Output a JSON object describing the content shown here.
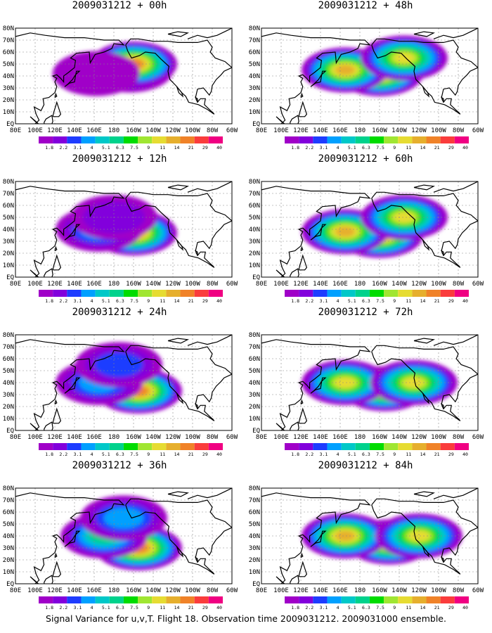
{
  "chart_data": [
    {
      "type": "heatmap",
      "title": "2009031212 + 00h",
      "x_ticks": [
        "80E",
        "100E",
        "120E",
        "140E",
        "160E",
        "180",
        "160W",
        "140W",
        "120W",
        "100W",
        "80W",
        "60W"
      ],
      "y_ticks": [
        "EQ",
        "10N",
        "20N",
        "30N",
        "40N",
        "50N",
        "60N",
        "70N",
        "80N"
      ],
      "legend_values": [
        "1.8",
        "2.2",
        "3.1",
        "4",
        "5.1",
        "6.3",
        "7.5",
        "9",
        "11",
        "14",
        "21",
        "29",
        "40"
      ],
      "blobs": [
        {
          "lon": 196,
          "lat": 45,
          "level": 5
        },
        {
          "lon": 200,
          "lat": 50,
          "level": 10
        },
        {
          "lon": 162,
          "lat": 42,
          "level": 0
        }
      ]
    },
    {
      "type": "heatmap",
      "title": "2009031212 + 12h",
      "x_ticks": [
        "80E",
        "100E",
        "120E",
        "140E",
        "160E",
        "180",
        "160W",
        "140W",
        "120W",
        "100W",
        "80W",
        "60W"
      ],
      "y_ticks": [
        "EQ",
        "10N",
        "20N",
        "30N",
        "40N",
        "50N",
        "60N",
        "70N",
        "80N"
      ],
      "legend_values": [
        "1.8",
        "2.2",
        "3.1",
        "4",
        "5.1",
        "6.3",
        "7.5",
        "9",
        "11",
        "14",
        "21",
        "29",
        "40"
      ],
      "blobs": [
        {
          "lon": 200,
          "lat": 37,
          "level": 10
        },
        {
          "lon": 165,
          "lat": 40,
          "level": 3
        },
        {
          "lon": 180,
          "lat": 50,
          "level": 1
        }
      ]
    },
    {
      "type": "heatmap",
      "title": "2009031212 + 24h",
      "x_ticks": [
        "80E",
        "100E",
        "120E",
        "140E",
        "160E",
        "180",
        "160W",
        "140W",
        "120W",
        "100W",
        "80W",
        "60W"
      ],
      "y_ticks": [
        "EQ",
        "10N",
        "20N",
        "30N",
        "40N",
        "50N",
        "60N",
        "70N",
        "80N"
      ],
      "legend_values": [
        "1.8",
        "2.2",
        "3.1",
        "4",
        "5.1",
        "6.3",
        "7.5",
        "9",
        "11",
        "14",
        "21",
        "29",
        "40"
      ],
      "blobs": [
        {
          "lon": 205,
          "lat": 33,
          "level": 10
        },
        {
          "lon": 165,
          "lat": 40,
          "level": 3
        },
        {
          "lon": 185,
          "lat": 55,
          "level": 2
        }
      ]
    },
    {
      "type": "heatmap",
      "title": "2009031212 + 36h",
      "x_ticks": [
        "80E",
        "100E",
        "120E",
        "140E",
        "160E",
        "180",
        "160W",
        "140W",
        "120W",
        "100W",
        "80W",
        "60W"
      ],
      "y_ticks": [
        "EQ",
        "10N",
        "20N",
        "30N",
        "40N",
        "50N",
        "60N",
        "70N",
        "80N"
      ],
      "legend_values": [
        "1.8",
        "2.2",
        "3.1",
        "4",
        "5.1",
        "6.3",
        "7.5",
        "9",
        "11",
        "14",
        "21",
        "29",
        "40"
      ],
      "blobs": [
        {
          "lon": 205,
          "lat": 30,
          "level": 10
        },
        {
          "lon": 170,
          "lat": 40,
          "level": 5
        },
        {
          "lon": 190,
          "lat": 55,
          "level": 3
        }
      ]
    },
    {
      "type": "heatmap",
      "title": "2009031212 + 48h",
      "x_ticks": [
        "80E",
        "100E",
        "120E",
        "140E",
        "160E",
        "180",
        "160W",
        "140W",
        "120W",
        "100W",
        "80W",
        "60W"
      ],
      "y_ticks": [
        "EQ",
        "10N",
        "20N",
        "30N",
        "40N",
        "50N",
        "60N",
        "70N",
        "80N"
      ],
      "legend_values": [
        "1.8",
        "2.2",
        "3.1",
        "4",
        "5.1",
        "6.3",
        "7.5",
        "9",
        "11",
        "14",
        "21",
        "29",
        "40"
      ],
      "blobs": [
        {
          "lon": 200,
          "lat": 42,
          "level": 10
        },
        {
          "lon": 165,
          "lat": 45,
          "level": 9
        },
        {
          "lon": 225,
          "lat": 55,
          "level": 8
        }
      ]
    },
    {
      "type": "heatmap",
      "title": "2009031212 + 60h",
      "x_ticks": [
        "80E",
        "100E",
        "120E",
        "140E",
        "160E",
        "180",
        "160W",
        "140W",
        "120W",
        "100W",
        "80W",
        "60W"
      ],
      "y_ticks": [
        "EQ",
        "10N",
        "20N",
        "30N",
        "40N",
        "50N",
        "60N",
        "70N",
        "80N"
      ],
      "legend_values": [
        "1.8",
        "2.2",
        "3.1",
        "4",
        "5.1",
        "6.3",
        "7.5",
        "9",
        "11",
        "14",
        "21",
        "29",
        "40"
      ],
      "blobs": [
        {
          "lon": 200,
          "lat": 35,
          "level": 10
        },
        {
          "lon": 165,
          "lat": 38,
          "level": 9
        },
        {
          "lon": 225,
          "lat": 50,
          "level": 8
        }
      ]
    },
    {
      "type": "heatmap",
      "title": "2009031212 + 72h",
      "x_ticks": [
        "80E",
        "100E",
        "120E",
        "140E",
        "160E",
        "180",
        "160W",
        "140W",
        "120W",
        "100W",
        "80W",
        "60W"
      ],
      "y_ticks": [
        "EQ",
        "10N",
        "20N",
        "30N",
        "40N",
        "50N",
        "60N",
        "70N",
        "80N"
      ],
      "legend_values": [
        "1.8",
        "2.2",
        "3.1",
        "4",
        "5.1",
        "6.3",
        "7.5",
        "9",
        "11",
        "14",
        "21",
        "29",
        "40"
      ],
      "blobs": [
        {
          "lon": 205,
          "lat": 35,
          "level": 10
        },
        {
          "lon": 165,
          "lat": 40,
          "level": 8
        },
        {
          "lon": 235,
          "lat": 40,
          "level": 8
        }
      ]
    },
    {
      "type": "heatmap",
      "title": "2009031212 + 84h",
      "x_ticks": [
        "80E",
        "100E",
        "120E",
        "140E",
        "160E",
        "180",
        "160W",
        "140W",
        "120W",
        "100W",
        "80W",
        "60W"
      ],
      "y_ticks": [
        "EQ",
        "10N",
        "20N",
        "30N",
        "40N",
        "50N",
        "60N",
        "70N",
        "80N"
      ],
      "legend_values": [
        "1.8",
        "2.2",
        "3.1",
        "4",
        "5.1",
        "6.3",
        "7.5",
        "9",
        "11",
        "14",
        "21",
        "29",
        "40"
      ],
      "blobs": [
        {
          "lon": 210,
          "lat": 35,
          "level": 10
        },
        {
          "lon": 165,
          "lat": 40,
          "level": 9
        },
        {
          "lon": 240,
          "lat": 40,
          "level": 8
        }
      ]
    }
  ],
  "legend_colors": [
    "#a000c8",
    "#8200dc",
    "#1e3cff",
    "#00a0ff",
    "#00c8c8",
    "#00d28c",
    "#00dc00",
    "#a0e632",
    "#e6dc32",
    "#e6af2d",
    "#f08228",
    "#fa3c3c",
    "#f00082"
  ],
  "footer": "Signal Variance for u,v,T. Flight 18. Observation time 2009031212. 2009031000 ensemble."
}
